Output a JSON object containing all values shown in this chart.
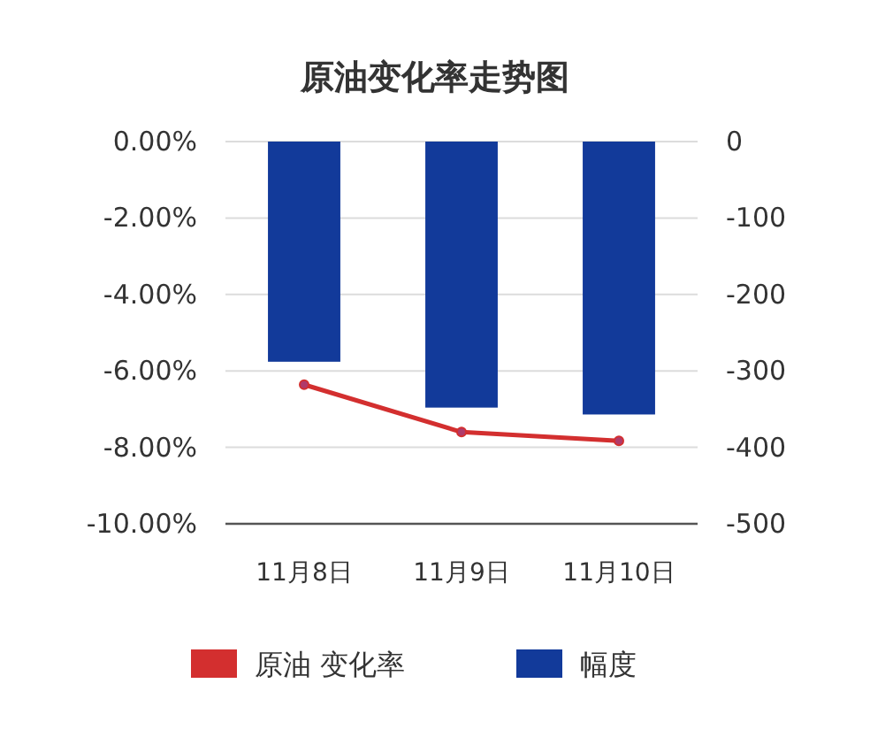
{
  "chart_data": {
    "type": "bar",
    "title": "原油变化率走势图",
    "categories": [
      "11月8日",
      "11月9日",
      "11月10日"
    ],
    "series": [
      {
        "name": "原油 变化率",
        "type": "line",
        "color": "#d32f2f",
        "values": [
          -6.36,
          -7.6,
          -7.83
        ],
        "marker": "circle"
      },
      {
        "name": "幅度",
        "axis": "y2",
        "color": "#123a9a",
        "values": [
          -288,
          -348,
          -357
        ]
      }
    ],
    "ylim": [
      -10,
      0
    ],
    "yticks": [
      {
        "value": 0,
        "label": "0.00%"
      },
      {
        "value": -2,
        "label": "-2.00%"
      },
      {
        "value": -4,
        "label": "-4.00%"
      },
      {
        "value": -6,
        "label": "-6.00%"
      },
      {
        "value": -8,
        "label": "-8.00%"
      },
      {
        "value": -10,
        "label": "-10.00%"
      }
    ],
    "y2lim": [
      -500,
      0
    ],
    "y2ticks": [
      0,
      -100,
      -200,
      -300,
      -400,
      -500
    ],
    "grid": "y",
    "legend": "bottom"
  }
}
